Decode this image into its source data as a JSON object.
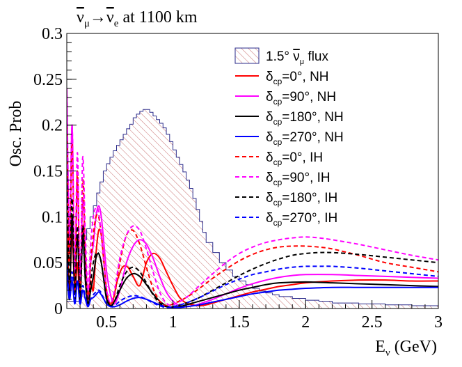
{
  "chart_data": {
    "type": "line",
    "title_main": "ν",
    "title_sub": "μ",
    "title_arrow": "→",
    "title_target": "ν",
    "title_target_sub": "e",
    "title_rest": " at 1100 km",
    "ylabel": "Osc. Prob",
    "xlabel_main": "E",
    "xlabel_sub": "ν",
    "xlabel_rest": " (GeV)",
    "xlim": [
      0.2,
      3.0
    ],
    "ylim": [
      0,
      0.3
    ],
    "x_ticks": [
      0.5,
      1,
      1.5,
      2,
      2.5,
      3
    ],
    "x_tick_labels": [
      "0.5",
      "1",
      "1.5",
      "2",
      "2.5",
      "3"
    ],
    "y_ticks": [
      0,
      0.05,
      0.1,
      0.15,
      0.2,
      0.25,
      0.3
    ],
    "y_tick_labels": [
      "0",
      "0.05",
      "0.1",
      "0.15",
      "0.2",
      "0.25",
      "0.3"
    ],
    "legend_position": "top-right",
    "flux": {
      "label_main": "1.5°  ",
      "label_nu": "ν",
      "label_sub": "μ",
      "label_rest": " flux",
      "color": "#c87070",
      "edges": [
        0.2,
        0.3,
        0.325,
        0.35,
        0.375,
        0.4,
        0.425,
        0.45,
        0.475,
        0.5,
        0.525,
        0.55,
        0.575,
        0.6,
        0.625,
        0.65,
        0.675,
        0.7,
        0.725,
        0.75,
        0.775,
        0.8,
        0.825,
        0.85,
        0.875,
        0.9,
        0.925,
        0.95,
        0.975,
        1.0,
        1.025,
        1.05,
        1.075,
        1.1,
        1.125,
        1.15,
        1.175,
        1.2,
        1.225,
        1.25,
        1.3,
        1.35,
        1.4,
        1.45,
        1.5,
        1.55,
        1.6,
        1.65,
        1.7,
        1.75,
        1.8,
        1.9,
        2.0,
        2.1,
        2.2,
        2.4,
        2.6,
        2.8,
        3.0
      ],
      "values": [
        0.008,
        0.06,
        0.075,
        0.087,
        0.1,
        0.112,
        0.126,
        0.138,
        0.15,
        0.158,
        0.165,
        0.172,
        0.178,
        0.184,
        0.19,
        0.196,
        0.201,
        0.208,
        0.212,
        0.215,
        0.217,
        0.217,
        0.214,
        0.21,
        0.206,
        0.202,
        0.197,
        0.19,
        0.182,
        0.173,
        0.165,
        0.157,
        0.149,
        0.14,
        0.131,
        0.12,
        0.108,
        0.095,
        0.083,
        0.072,
        0.061,
        0.05,
        0.042,
        0.035,
        0.03,
        0.026,
        0.022,
        0.019,
        0.017,
        0.015,
        0.013,
        0.011,
        0.009,
        0.008,
        0.006,
        0.005,
        0.004,
        0.003
      ]
    },
    "series": [
      {
        "delta": "=0°, NH",
        "color": "#ff0000",
        "dashed": false,
        "x": [
          0.2,
          0.22,
          0.24,
          0.26,
          0.28,
          0.3,
          0.32,
          0.34,
          0.36,
          0.38,
          0.4,
          0.42,
          0.44,
          0.46,
          0.48,
          0.5,
          0.52,
          0.55,
          0.58,
          0.62,
          0.66,
          0.7,
          0.75,
          0.8,
          0.85,
          0.9,
          0.95,
          1.0,
          1.05,
          1.1,
          1.15,
          1.2,
          1.25,
          1.3,
          1.4,
          1.5,
          1.6,
          1.7,
          1.8,
          1.9,
          2.0,
          2.2,
          2.4,
          2.6,
          2.8,
          3.0
        ],
        "y": [
          0.09,
          0.02,
          0.08,
          0.02,
          0.05,
          0.01,
          0.09,
          0.05,
          0.01,
          0.03,
          0.02,
          0.06,
          0.085,
          0.08,
          0.05,
          0.02,
          0.005,
          0.01,
          0.03,
          0.045,
          0.045,
          0.035,
          0.025,
          0.05,
          0.06,
          0.055,
          0.04,
          0.025,
          0.012,
          0.006,
          0.004,
          0.003,
          0.004,
          0.006,
          0.01,
          0.014,
          0.018,
          0.021,
          0.024,
          0.026,
          0.028,
          0.03,
          0.031,
          0.031,
          0.03,
          0.03
        ]
      },
      {
        "delta": "=90°, NH",
        "color": "#ff00ff",
        "dashed": false,
        "x": [
          0.2,
          0.22,
          0.24,
          0.26,
          0.28,
          0.3,
          0.32,
          0.34,
          0.36,
          0.38,
          0.4,
          0.42,
          0.44,
          0.46,
          0.48,
          0.5,
          0.53,
          0.56,
          0.6,
          0.65,
          0.7,
          0.75,
          0.8,
          0.85,
          0.9,
          0.95,
          1.0,
          1.05,
          1.1,
          1.15,
          1.2,
          1.3,
          1.4,
          1.5,
          1.6,
          1.7,
          1.8,
          1.9,
          2.0,
          2.2,
          2.4,
          2.6,
          2.8,
          3.0
        ],
        "y": [
          0.24,
          0.06,
          0.2,
          0.02,
          0.14,
          0.02,
          0.12,
          0.06,
          0.01,
          0.05,
          0.07,
          0.1,
          0.112,
          0.1,
          0.07,
          0.04,
          0.015,
          0.005,
          0.02,
          0.05,
          0.068,
          0.075,
          0.07,
          0.055,
          0.035,
          0.018,
          0.008,
          0.003,
          0.002,
          0.003,
          0.005,
          0.01,
          0.016,
          0.022,
          0.027,
          0.031,
          0.034,
          0.036,
          0.037,
          0.037,
          0.036,
          0.035,
          0.034,
          0.033
        ]
      },
      {
        "delta": "=180°, NH",
        "color": "#000000",
        "dashed": false,
        "x": [
          0.2,
          0.22,
          0.24,
          0.26,
          0.28,
          0.3,
          0.32,
          0.34,
          0.36,
          0.38,
          0.4,
          0.42,
          0.44,
          0.46,
          0.48,
          0.5,
          0.53,
          0.56,
          0.6,
          0.65,
          0.7,
          0.75,
          0.8,
          0.85,
          0.9,
          0.95,
          1.0,
          1.05,
          1.1,
          1.15,
          1.2,
          1.3,
          1.4,
          1.5,
          1.6,
          1.7,
          1.8,
          2.0,
          2.2,
          2.4,
          2.6,
          2.8,
          3.0
        ],
        "y": [
          0.07,
          0.01,
          0.1,
          0.02,
          0.08,
          0.01,
          0.08,
          0.03,
          0.005,
          0.02,
          0.035,
          0.055,
          0.06,
          0.05,
          0.03,
          0.01,
          0.003,
          0.008,
          0.02,
          0.033,
          0.038,
          0.035,
          0.026,
          0.016,
          0.008,
          0.003,
          0.001,
          0.002,
          0.004,
          0.006,
          0.008,
          0.012,
          0.016,
          0.02,
          0.023,
          0.026,
          0.028,
          0.029,
          0.028,
          0.027,
          0.026,
          0.025,
          0.024
        ]
      },
      {
        "delta": "=270°, NH",
        "color": "#0000ff",
        "dashed": false,
        "x": [
          0.2,
          0.22,
          0.24,
          0.26,
          0.28,
          0.3,
          0.32,
          0.34,
          0.36,
          0.38,
          0.4,
          0.42,
          0.44,
          0.46,
          0.48,
          0.5,
          0.53,
          0.56,
          0.6,
          0.65,
          0.7,
          0.75,
          0.8,
          0.85,
          0.9,
          0.95,
          1.0,
          1.05,
          1.1,
          1.2,
          1.3,
          1.4,
          1.5,
          1.6,
          1.7,
          1.8,
          1.9,
          2.0,
          2.2,
          2.4,
          2.6,
          2.8,
          3.0
        ],
        "y": [
          0.04,
          0.01,
          0.03,
          0.005,
          0.03,
          0.005,
          0.02,
          0.01,
          0.002,
          0.01,
          0.012,
          0.015,
          0.018,
          0.015,
          0.01,
          0.005,
          0.002,
          0.002,
          0.004,
          0.008,
          0.011,
          0.012,
          0.01,
          0.007,
          0.004,
          0.002,
          0.001,
          0.001,
          0.002,
          0.004,
          0.007,
          0.01,
          0.013,
          0.016,
          0.018,
          0.02,
          0.021,
          0.022,
          0.023,
          0.023,
          0.023,
          0.023,
          0.023
        ]
      },
      {
        "delta": "=0°, IH",
        "color": "#ff0000",
        "dashed": true,
        "x": [
          0.2,
          0.22,
          0.24,
          0.26,
          0.28,
          0.3,
          0.32,
          0.34,
          0.36,
          0.38,
          0.4,
          0.42,
          0.44,
          0.46,
          0.48,
          0.5,
          0.53,
          0.56,
          0.6,
          0.65,
          0.7,
          0.75,
          0.8,
          0.85,
          0.9,
          0.95,
          1.0,
          1.1,
          1.2,
          1.3,
          1.4,
          1.5,
          1.6,
          1.7,
          1.8,
          1.9,
          2.0,
          2.1,
          2.2,
          2.4,
          2.6,
          2.8,
          3.0
        ],
        "y": [
          0.2,
          0.05,
          0.18,
          0.02,
          0.15,
          0.02,
          0.14,
          0.06,
          0.01,
          0.05,
          0.08,
          0.1,
          0.1,
          0.08,
          0.05,
          0.02,
          0.005,
          0.015,
          0.05,
          0.08,
          0.085,
          0.07,
          0.045,
          0.022,
          0.008,
          0.003,
          0.005,
          0.012,
          0.022,
          0.033,
          0.043,
          0.052,
          0.059,
          0.064,
          0.067,
          0.068,
          0.068,
          0.067,
          0.065,
          0.058,
          0.05,
          0.045,
          0.04
        ]
      },
      {
        "delta": "=90°, IH",
        "color": "#ff00ff",
        "dashed": true,
        "x": [
          0.2,
          0.22,
          0.24,
          0.26,
          0.28,
          0.3,
          0.32,
          0.34,
          0.36,
          0.38,
          0.4,
          0.42,
          0.44,
          0.46,
          0.48,
          0.5,
          0.53,
          0.56,
          0.6,
          0.65,
          0.7,
          0.75,
          0.8,
          0.85,
          0.9,
          0.95,
          1.0,
          1.1,
          1.2,
          1.3,
          1.4,
          1.5,
          1.6,
          1.7,
          1.8,
          1.9,
          2.0,
          2.1,
          2.2,
          2.4,
          2.6,
          2.8,
          3.0
        ],
        "y": [
          0.24,
          0.08,
          0.2,
          0.04,
          0.17,
          0.03,
          0.165,
          0.08,
          0.02,
          0.07,
          0.1,
          0.11,
          0.105,
          0.08,
          0.05,
          0.02,
          0.006,
          0.02,
          0.055,
          0.08,
          0.09,
          0.085,
          0.065,
          0.04,
          0.018,
          0.006,
          0.004,
          0.012,
          0.025,
          0.038,
          0.05,
          0.06,
          0.067,
          0.072,
          0.075,
          0.077,
          0.078,
          0.077,
          0.075,
          0.07,
          0.064,
          0.058,
          0.053
        ]
      },
      {
        "delta": "=180°, IH",
        "color": "#000000",
        "dashed": true,
        "x": [
          0.2,
          0.22,
          0.24,
          0.26,
          0.28,
          0.3,
          0.32,
          0.34,
          0.36,
          0.38,
          0.4,
          0.42,
          0.44,
          0.46,
          0.48,
          0.5,
          0.53,
          0.56,
          0.6,
          0.65,
          0.7,
          0.75,
          0.8,
          0.85,
          0.9,
          0.95,
          1.0,
          1.1,
          1.2,
          1.3,
          1.4,
          1.5,
          1.6,
          1.7,
          1.8,
          1.9,
          2.0,
          2.1,
          2.2,
          2.4,
          2.6,
          2.8,
          3.0
        ],
        "y": [
          0.15,
          0.03,
          0.12,
          0.01,
          0.09,
          0.01,
          0.09,
          0.04,
          0.005,
          0.03,
          0.05,
          0.06,
          0.06,
          0.05,
          0.03,
          0.012,
          0.003,
          0.008,
          0.025,
          0.04,
          0.045,
          0.04,
          0.028,
          0.015,
          0.006,
          0.002,
          0.002,
          0.006,
          0.012,
          0.02,
          0.028,
          0.036,
          0.043,
          0.049,
          0.054,
          0.058,
          0.06,
          0.061,
          0.061,
          0.059,
          0.056,
          0.053,
          0.05
        ]
      },
      {
        "delta": "=270°, IH",
        "color": "#0000ff",
        "dashed": true,
        "x": [
          0.2,
          0.22,
          0.24,
          0.26,
          0.28,
          0.3,
          0.32,
          0.34,
          0.36,
          0.38,
          0.4,
          0.42,
          0.44,
          0.46,
          0.48,
          0.5,
          0.53,
          0.56,
          0.6,
          0.65,
          0.7,
          0.75,
          0.8,
          0.85,
          0.9,
          0.95,
          1.0,
          1.1,
          1.2,
          1.3,
          1.4,
          1.5,
          1.6,
          1.7,
          1.8,
          1.9,
          2.0,
          2.1,
          2.2,
          2.4,
          2.6,
          2.8,
          3.0
        ],
        "y": [
          0.05,
          0.01,
          0.04,
          0.005,
          0.03,
          0.005,
          0.025,
          0.012,
          0.003,
          0.01,
          0.015,
          0.018,
          0.02,
          0.017,
          0.01,
          0.005,
          0.002,
          0.003,
          0.008,
          0.012,
          0.014,
          0.013,
          0.01,
          0.006,
          0.003,
          0.001,
          0.002,
          0.006,
          0.012,
          0.019,
          0.026,
          0.032,
          0.037,
          0.04,
          0.043,
          0.045,
          0.046,
          0.046,
          0.046,
          0.044,
          0.041,
          0.038,
          0.035
        ]
      }
    ]
  }
}
